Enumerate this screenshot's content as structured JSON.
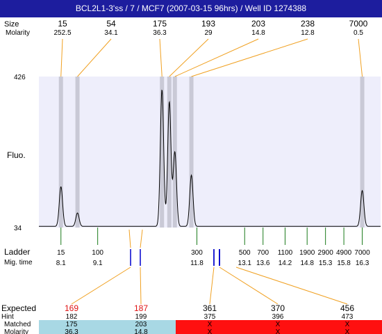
{
  "header": {
    "title": "BCL2L1-3'ss / 7 / MCF7 (2007-03-15 96hrs) / Well ID 1274388"
  },
  "colors": {
    "title_bg": "#1d1d9e",
    "plot_bg": "#eeeefb",
    "peak_band": "#c9c9d6",
    "connector": "#f0a020",
    "ladder_tick": "#1a7a1a",
    "marker_tick": "#0000cc",
    "expected_highlight": "#e01010",
    "matched_bg": "#a8d8e4",
    "unmatched_bg": "#ff1010"
  },
  "chart_data": {
    "type": "line",
    "title": "BCL2L1-3'ss / 7 / MCF7 (2007-03-15 96hrs) / Well ID 1274388",
    "ylabel": "Fluo.",
    "xlabel": "",
    "ylim": [
      34,
      426
    ],
    "y_ticks": [
      34,
      426
    ],
    "xlim": [
      7.5,
      16.8
    ],
    "row_labels": {
      "size": "Size",
      "molarity": "Molarity"
    },
    "peaks": [
      {
        "size": "15",
        "molarity": "252.5",
        "mig_time": 8.1,
        "height": 140
      },
      {
        "size": "54",
        "molarity": "34.1",
        "mig_time": 8.55,
        "height": 72
      },
      {
        "size": "175",
        "molarity": "36.3",
        "mig_time": 10.85,
        "height": 392
      },
      {
        "size": "193",
        "molarity": "29",
        "mig_time": 11.05,
        "height": 360
      },
      {
        "size": "203",
        "molarity": "14.8",
        "mig_time": 11.2,
        "height": 230
      },
      {
        "size": "238",
        "molarity": "12.8",
        "mig_time": 11.65,
        "height": 170
      },
      {
        "size": "7000",
        "molarity": "0.5",
        "mig_time": 16.3,
        "height": 130
      }
    ],
    "ladder": {
      "label": "Ladder",
      "time_label": "Mig. time",
      "sizes": [
        "15",
        "100",
        "300",
        "500",
        "700",
        "1100",
        "1900",
        "2900",
        "4900",
        "7000"
      ],
      "mig_times": [
        "8.1",
        "9.1",
        "11.8",
        "13.1",
        "13.6",
        "14.2",
        "14.8",
        "15.3",
        "15.8",
        "16.3"
      ]
    },
    "table": {
      "row_labels": {
        "expected": "Expected",
        "hint": "Hint",
        "matched": "Matched",
        "molarity": "Molarity"
      },
      "columns": [
        {
          "expected": "169",
          "hint": "182",
          "matched": "175",
          "molarity": "36.3",
          "found": true
        },
        {
          "expected": "187",
          "hint": "199",
          "matched": "203",
          "molarity": "14.8",
          "found": true
        },
        {
          "expected": "361",
          "hint": "375",
          "matched": "X",
          "molarity": "X",
          "found": false
        },
        {
          "expected": "370",
          "hint": "396",
          "matched": "X",
          "molarity": "X",
          "found": false
        },
        {
          "expected": "456",
          "hint": "473",
          "matched": "X",
          "molarity": "X",
          "found": false
        }
      ]
    }
  }
}
